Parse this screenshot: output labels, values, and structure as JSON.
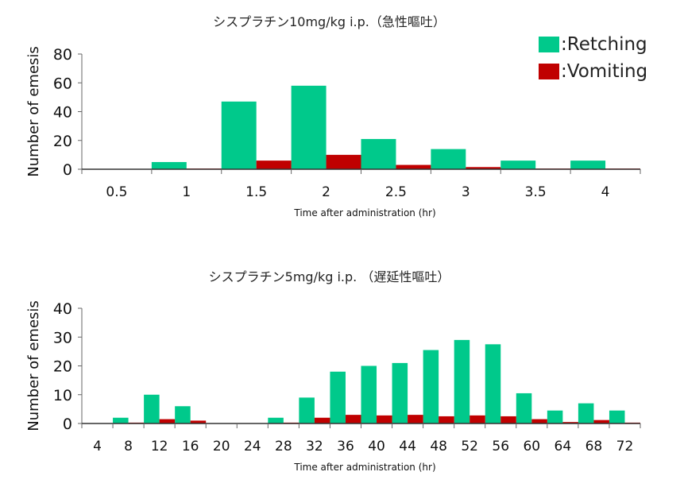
{
  "legend": {
    "retching_label": ":Retching",
    "vomiting_label": ":Vomiting",
    "retching_color": "#00c98b",
    "vomiting_color": "#c00000"
  },
  "chart_data": [
    {
      "type": "bar",
      "title": "シスプラチン10mg/kg i.p.（急性嘔吐）",
      "xlabel": "Time after administration (hr)",
      "ylabel": "Number of emesis",
      "categories": [
        "0.5",
        "1",
        "1.5",
        "2",
        "2.5",
        "3",
        "3.5",
        "4"
      ],
      "ylim": [
        0,
        80
      ],
      "yticks": [
        0,
        20,
        40,
        60,
        80
      ],
      "grid": false,
      "legend_position": "top-right",
      "series": [
        {
          "name": "Retching",
          "color": "#00c98b",
          "values": [
            0,
            5,
            47,
            58,
            21,
            14,
            6,
            6
          ]
        },
        {
          "name": "Vomiting",
          "color": "#c00000",
          "values": [
            0,
            0.5,
            6,
            10,
            3,
            1.5,
            0.5,
            0.5
          ]
        }
      ]
    },
    {
      "type": "bar",
      "title": "シスプラチン5mg/kg i.p. （遅延性嘔吐）",
      "xlabel": "Time after administration (hr)",
      "ylabel": "Number of emesis",
      "categories": [
        "4",
        "8",
        "12",
        "16",
        "20",
        "24",
        "28",
        "32",
        "36",
        "40",
        "44",
        "48",
        "52",
        "56",
        "60",
        "64",
        "68",
        "72"
      ],
      "ylim": [
        0,
        40
      ],
      "yticks": [
        0,
        10,
        20,
        30,
        40
      ],
      "grid": false,
      "legend_position": "top-right",
      "series": [
        {
          "name": "Retching",
          "color": "#00c98b",
          "values": [
            0,
            2,
            10,
            6,
            0,
            0,
            2,
            9,
            18,
            20,
            21,
            25.5,
            29,
            27.5,
            10.5,
            4.5,
            7,
            4.5
          ]
        },
        {
          "name": "Vomiting",
          "color": "#c00000",
          "values": [
            0,
            0.3,
            1.5,
            1,
            0,
            0,
            0.3,
            2,
            3,
            2.8,
            3,
            2.5,
            2.8,
            2.5,
            1.5,
            0.5,
            1.2,
            0.3
          ]
        }
      ]
    }
  ]
}
